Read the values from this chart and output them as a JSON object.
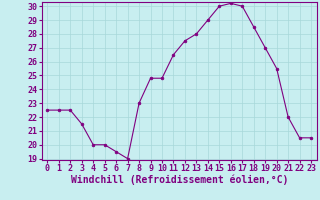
{
  "x": [
    0,
    1,
    2,
    3,
    4,
    5,
    6,
    7,
    8,
    9,
    10,
    11,
    12,
    13,
    14,
    15,
    16,
    17,
    18,
    19,
    20,
    21,
    22,
    23
  ],
  "y": [
    22.5,
    22.5,
    22.5,
    21.5,
    20.0,
    20.0,
    19.5,
    19.0,
    23.0,
    24.8,
    24.8,
    26.5,
    27.5,
    28.0,
    29.0,
    30.0,
    30.2,
    30.0,
    28.5,
    27.0,
    25.5,
    22.0,
    20.5,
    20.5
  ],
  "line_color": "#800080",
  "marker": "o",
  "marker_size": 2.0,
  "bg_color": "#c8eef0",
  "grid_color": "#a8d8da",
  "xlabel": "Windchill (Refroidissement éolien,°C)",
  "ylabel": "",
  "ylim": [
    19,
    30
  ],
  "xlim": [
    -0.5,
    23.5
  ],
  "yticks": [
    19,
    20,
    21,
    22,
    23,
    24,
    25,
    26,
    27,
    28,
    29,
    30
  ],
  "xticks": [
    0,
    1,
    2,
    3,
    4,
    5,
    6,
    7,
    8,
    9,
    10,
    11,
    12,
    13,
    14,
    15,
    16,
    17,
    18,
    19,
    20,
    21,
    22,
    23
  ],
  "tick_fontsize": 6.0,
  "xlabel_fontsize": 7.0,
  "label_color": "#800080",
  "spine_color": "#800080"
}
